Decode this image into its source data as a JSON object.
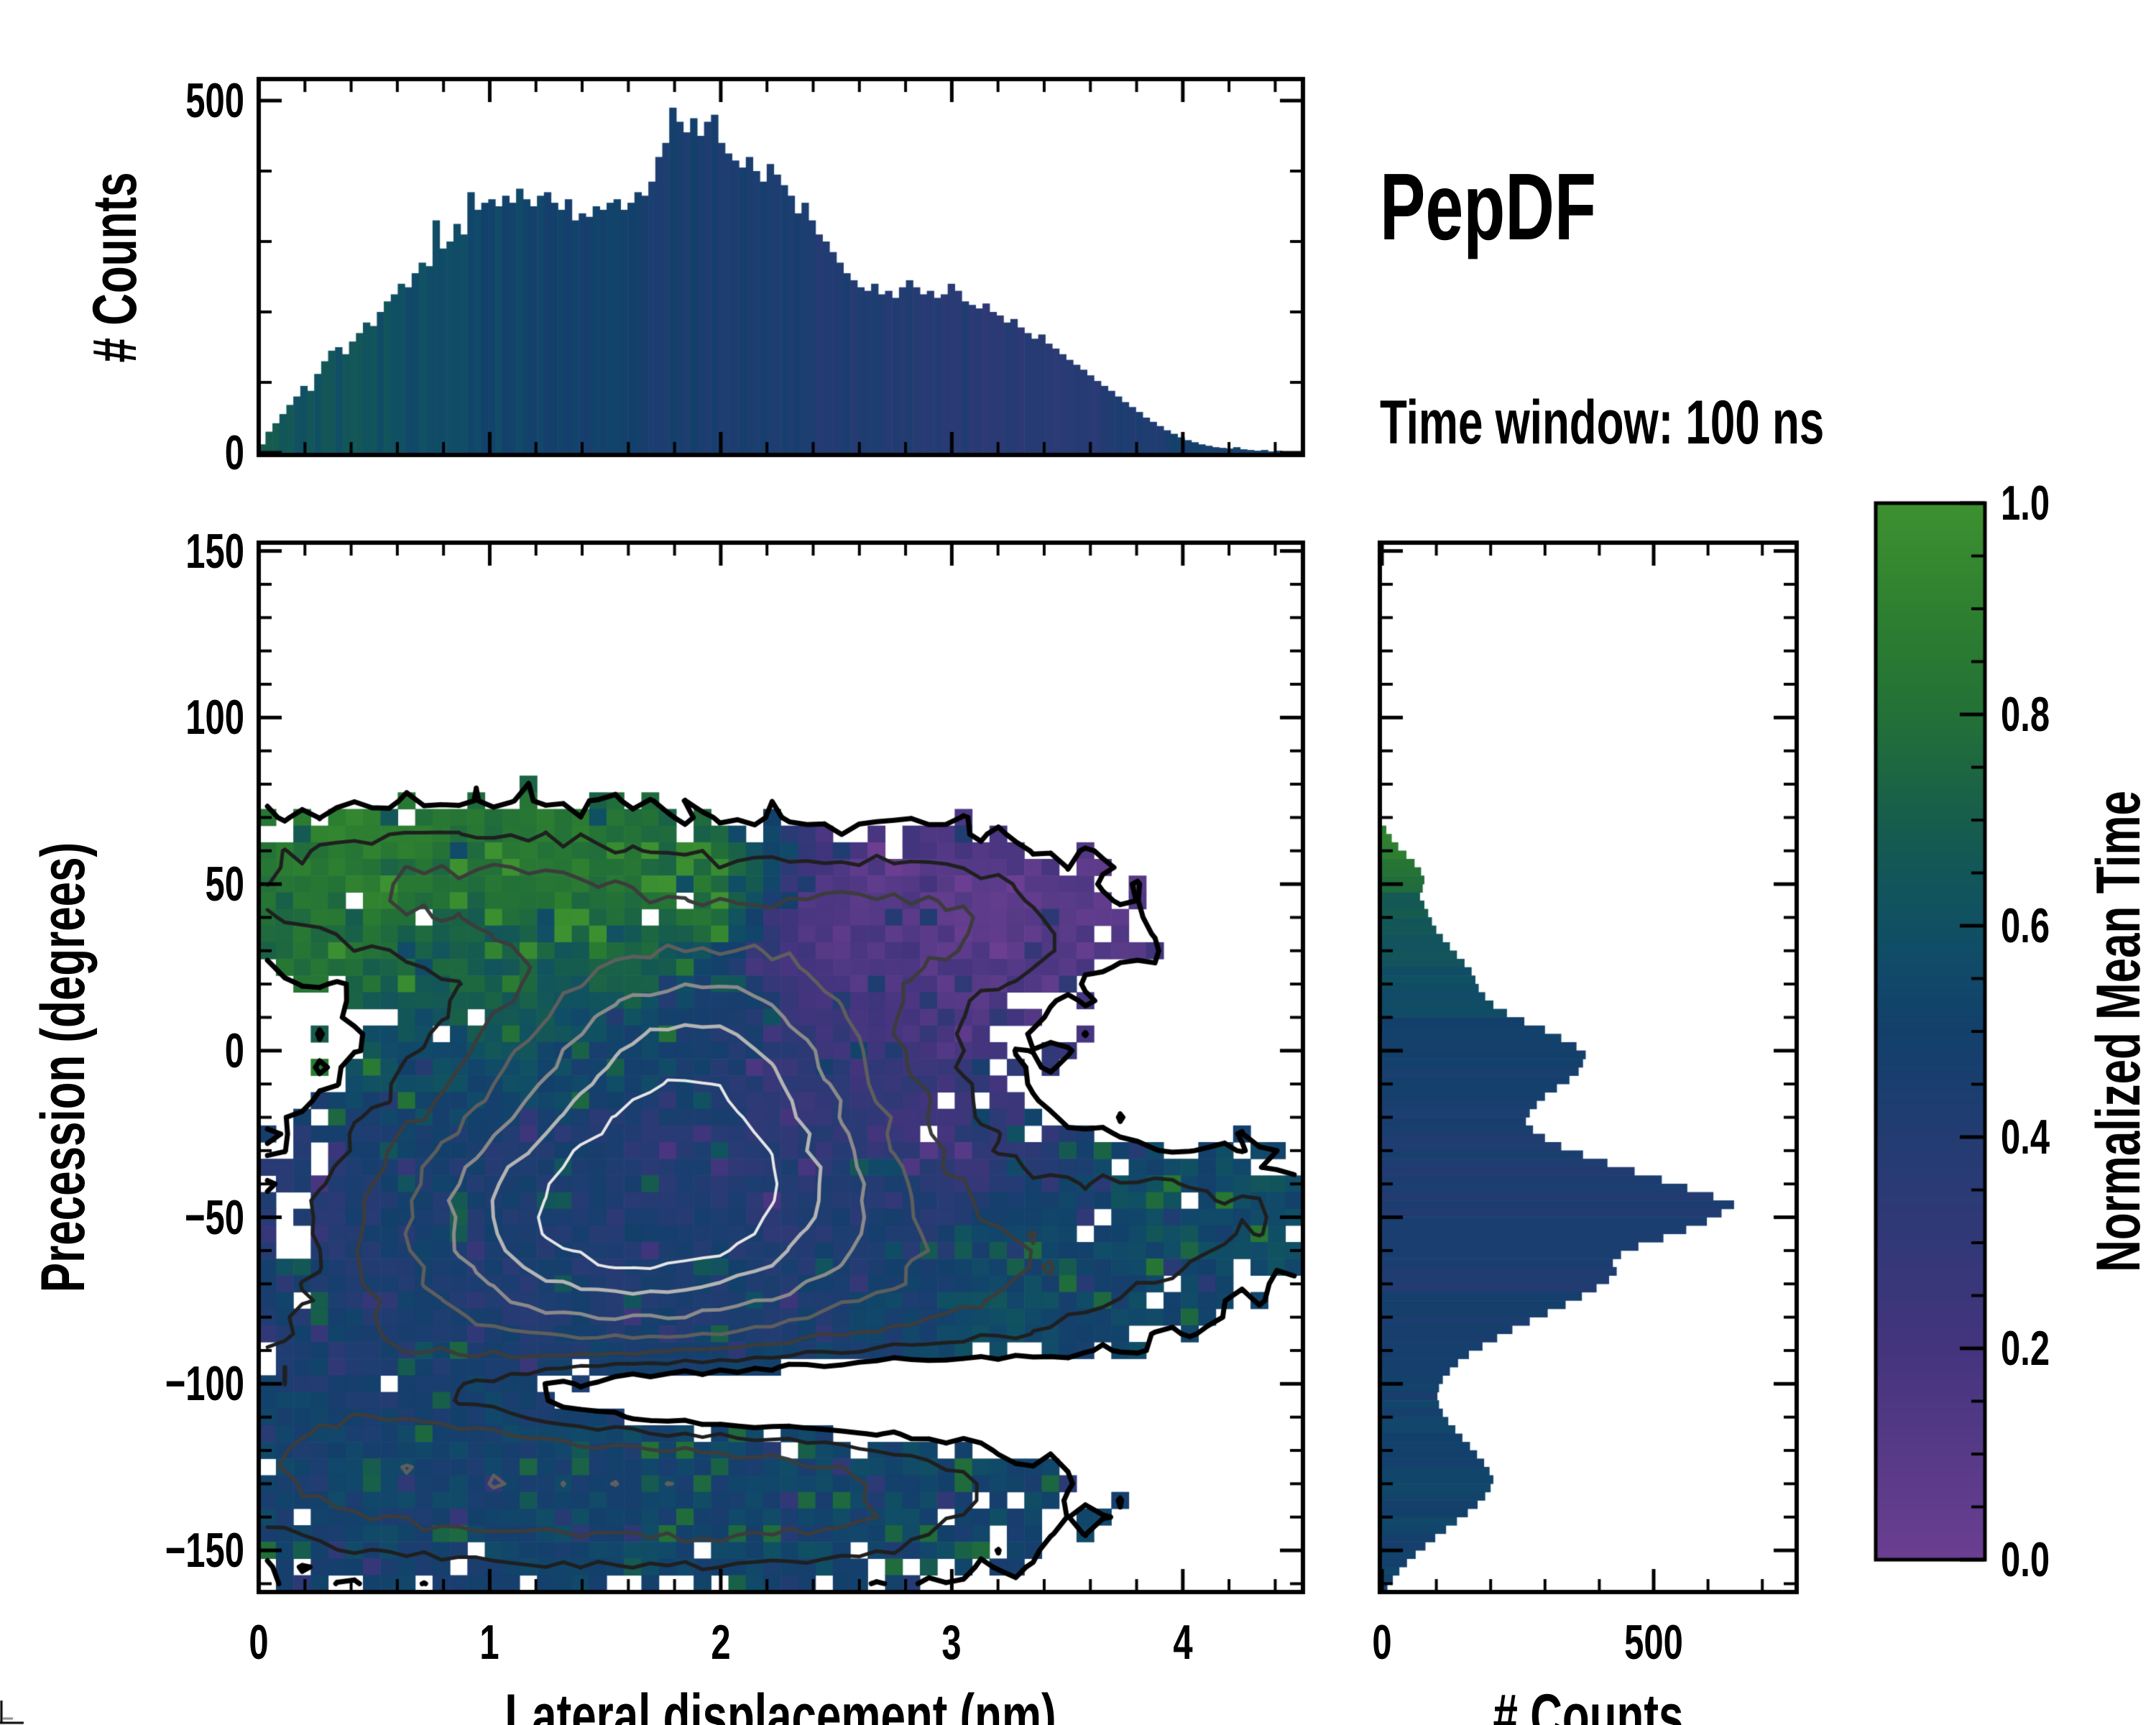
{
  "title": {
    "text": "PepDF",
    "subtitle": "Time window: 100 ns"
  },
  "panels": {
    "top_hist": {
      "ylabel": "# Counts",
      "ytick_labels": [
        "0",
        "500"
      ],
      "ytick_values": [
        0,
        500
      ],
      "y_minor_step": 100,
      "x_minor_step": 0.2
    },
    "main": {
      "xlabel": "Lateral displacement (nm)",
      "ylabel": "Precession (degrees)",
      "xtick_labels": [
        "0",
        "1",
        "2",
        "3",
        "4"
      ],
      "xtick_values": [
        0,
        1,
        2,
        3,
        4
      ],
      "x_minor_step": 0.2,
      "ytick_labels": [
        "150",
        "100",
        "50",
        "0",
        "−50",
        "−100",
        "−150"
      ],
      "ytick_values": [
        150,
        100,
        50,
        0,
        -50,
        -100,
        -150
      ],
      "y_minor_step": 10
    },
    "right_hist": {
      "xlabel": "# Counts",
      "xtick_labels": [
        "0",
        "500"
      ],
      "xtick_values": [
        0,
        500
      ],
      "x_minor_step": 100
    },
    "colorbar": {
      "label": "Normalized Mean Time",
      "tick_labels": [
        "1.0",
        "0.8",
        "0.6",
        "0.4",
        "0.2",
        "0.0"
      ],
      "tick_values": [
        1.0,
        0.8,
        0.6,
        0.4,
        0.2,
        0.0
      ],
      "minor_step": 0.05
    }
  },
  "chart_data": [
    {
      "id": "top_histogram",
      "type": "bar",
      "xlabel": "Lateral displacement (nm)",
      "ylabel": "# Counts",
      "xlim": [
        0,
        4.52
      ],
      "ylim": [
        0,
        530
      ],
      "x_start": 0,
      "bin_width": 0.030133,
      "values": [
        12,
        30,
        42,
        55,
        68,
        80,
        95,
        88,
        112,
        130,
        145,
        150,
        140,
        158,
        170,
        185,
        180,
        200,
        215,
        225,
        240,
        235,
        255,
        270,
        265,
        330,
        290,
        300,
        325,
        310,
        370,
        345,
        355,
        360,
        350,
        365,
        355,
        375,
        360,
        350,
        365,
        370,
        355,
        345,
        360,
        330,
        340,
        335,
        350,
        345,
        355,
        360,
        345,
        355,
        370,
        365,
        385,
        420,
        440,
        490,
        470,
        455,
        475,
        450,
        470,
        480,
        440,
        425,
        415,
        405,
        420,
        400,
        385,
        410,
        395,
        380,
        365,
        340,
        355,
        330,
        310,
        300,
        285,
        270,
        255,
        245,
        235,
        230,
        240,
        225,
        230,
        220,
        235,
        245,
        235,
        225,
        230,
        220,
        225,
        240,
        230,
        215,
        210,
        205,
        212,
        200,
        195,
        185,
        190,
        178,
        170,
        162,
        168,
        155,
        148,
        140,
        132,
        125,
        118,
        110,
        102,
        95,
        88,
        80,
        72,
        65,
        58,
        50,
        44,
        38,
        32,
        27,
        22,
        18,
        15,
        12,
        10,
        8,
        7,
        6,
        8,
        5,
        4,
        3,
        4,
        2,
        3,
        2,
        1,
        1
      ],
      "color_by": "normalized_mean_time",
      "mean_time_anchors": [
        [
          0,
          0.66
        ],
        [
          0.3,
          0.63
        ],
        [
          0.6,
          0.6
        ],
        [
          1.0,
          0.54
        ],
        [
          1.5,
          0.48
        ],
        [
          2.0,
          0.45
        ],
        [
          2.4,
          0.42
        ],
        [
          2.8,
          0.4
        ],
        [
          3.2,
          0.36
        ],
        [
          3.5,
          0.37
        ],
        [
          3.8,
          0.42
        ],
        [
          4.1,
          0.48
        ],
        [
          4.52,
          0.52
        ]
      ],
      "color_noise": 0.04
    },
    {
      "id": "joint_map",
      "type": "heatmap",
      "xlabel": "Lateral displacement (nm)",
      "ylabel": "Precession (degrees)",
      "colorlabel": "Normalized Mean Time",
      "xlim": [
        0,
        4.52
      ],
      "ylim": [
        -162.5,
        152.5
      ],
      "nx": 60,
      "ny": 63,
      "seed": 20240511,
      "density_gaussians": [
        [
          1.0,
          2.0,
          -42,
          0.6,
          30
        ],
        [
          0.7,
          1.25,
          -52,
          0.55,
          26
        ],
        [
          0.62,
          1.85,
          6,
          0.55,
          22
        ],
        [
          0.32,
          0.85,
          48,
          0.75,
          14
        ],
        [
          0.3,
          2.85,
          38,
          0.5,
          15
        ],
        [
          0.35,
          1.05,
          -130,
          0.8,
          16
        ],
        [
          0.3,
          2.3,
          -135,
          0.65,
          14
        ],
        [
          0.22,
          3.15,
          -70,
          0.55,
          16
        ],
        [
          0.2,
          3.95,
          -50,
          0.45,
          13
        ],
        [
          0.25,
          0.45,
          -105,
          0.5,
          22
        ],
        [
          -0.34,
          1.9,
          -103,
          1.0,
          9
        ]
      ],
      "density_noise": 0.03,
      "occupancy_threshold": 0.05,
      "dropout": {
        "amp": 0.45,
        "k": 14
      },
      "value_anchors": [
        [
          0.5,
          58,
          0.88
        ],
        [
          1.3,
          55,
          0.86
        ],
        [
          1.9,
          50,
          0.82
        ],
        [
          0.3,
          25,
          0.78
        ],
        [
          1.0,
          18,
          0.7
        ],
        [
          1.6,
          25,
          0.72
        ],
        [
          2.6,
          45,
          0.1
        ],
        [
          3.15,
          38,
          0.08
        ],
        [
          2.45,
          22,
          0.14
        ],
        [
          2.95,
          12,
          0.12
        ],
        [
          3.5,
          35,
          0.1
        ],
        [
          2.1,
          8,
          0.45
        ],
        [
          1.6,
          -2,
          0.52
        ],
        [
          0.8,
          -5,
          0.55
        ],
        [
          2.35,
          -8,
          0.3
        ],
        [
          2.8,
          -18,
          0.25
        ],
        [
          0.25,
          -40,
          0.4
        ],
        [
          1.0,
          -35,
          0.44
        ],
        [
          1.7,
          -30,
          0.4
        ],
        [
          2.2,
          -42,
          0.38
        ],
        [
          2.7,
          -50,
          0.42
        ],
        [
          3.1,
          -30,
          0.3
        ],
        [
          3.3,
          -55,
          0.52
        ],
        [
          3.9,
          -50,
          0.58
        ],
        [
          4.35,
          -48,
          0.58
        ],
        [
          3.2,
          -80,
          0.58
        ],
        [
          1.2,
          -70,
          0.42
        ],
        [
          2.0,
          -75,
          0.45
        ],
        [
          2.6,
          -85,
          0.5
        ],
        [
          0.6,
          -90,
          0.46
        ],
        [
          1.0,
          -115,
          0.5
        ],
        [
          1.8,
          -125,
          0.52
        ],
        [
          2.5,
          -135,
          0.52
        ],
        [
          0.5,
          -135,
          0.5
        ],
        [
          1.5,
          -150,
          0.52
        ],
        [
          2.3,
          -155,
          0.53
        ],
        [
          3.0,
          -115,
          0.54
        ]
      ],
      "value_noise": 0.07,
      "speck_up": {
        "p": 0.07,
        "dv": 0.22
      },
      "speck_down": {
        "p": 0.05,
        "dv": -0.16
      },
      "contours": {
        "levels": [
          0.05,
          0.16,
          0.3,
          0.48,
          0.68,
          0.9,
          1.12
        ],
        "colors": [
          "#000000",
          "#1f1f1f",
          "#3c3c3c",
          "#5e5e5e",
          "#8a8a8a",
          "#b4b4b4",
          "#e6e6e6"
        ],
        "widths": [
          7,
          5,
          5,
          5,
          5,
          5,
          4
        ]
      }
    },
    {
      "id": "right_histogram",
      "type": "bar-horizontal",
      "xlabel": "# Counts",
      "ylabel": "Precession (degrees)",
      "xlim": [
        0,
        767
      ],
      "ylim": [
        -162.5,
        152.5
      ],
      "y_start": 152.5,
      "bin_height": 2.5,
      "values": [
        0,
        0,
        0,
        0,
        0,
        0,
        0,
        0,
        0,
        0,
        0,
        0,
        0,
        0,
        0,
        0,
        0,
        0,
        0,
        0,
        0,
        0,
        0,
        0,
        0,
        0,
        0,
        0,
        0,
        0,
        0,
        0,
        0,
        0,
        8,
        18,
        30,
        45,
        60,
        72,
        78,
        75,
        70,
        78,
        85,
        92,
        100,
        112,
        125,
        138,
        152,
        165,
        172,
        178,
        190,
        205,
        230,
        262,
        300,
        330,
        358,
        375,
        370,
        362,
        345,
        322,
        300,
        285,
        272,
        265,
        278,
        300,
        330,
        370,
        415,
        465,
        515,
        562,
        610,
        648,
        625,
        598,
        560,
        518,
        472,
        440,
        425,
        432,
        418,
        395,
        368,
        338,
        305,
        272,
        240,
        212,
        185,
        160,
        140,
        125,
        112,
        105,
        102,
        105,
        112,
        122,
        135,
        148,
        162,
        175,
        188,
        198,
        205,
        200,
        190,
        176,
        158,
        138,
        118,
        98,
        80,
        62,
        46,
        32,
        20,
        10
      ],
      "color_by": "normalized_mean_time",
      "mean_time_anchors": [
        [
          66,
          0.88
        ],
        [
          55,
          0.86
        ],
        [
          46,
          0.7
        ],
        [
          36,
          0.62
        ],
        [
          26,
          0.6
        ],
        [
          16,
          0.57
        ],
        [
          6,
          0.52
        ],
        [
          -4,
          0.47
        ],
        [
          -18,
          0.44
        ],
        [
          -40,
          0.42
        ],
        [
          -58,
          0.43
        ],
        [
          -76,
          0.45
        ],
        [
          -95,
          0.48
        ],
        [
          -115,
          0.51
        ],
        [
          -135,
          0.52
        ],
        [
          -161,
          0.5
        ]
      ],
      "color_noise": 0.04
    },
    {
      "id": "colorbar",
      "type": "colorbar",
      "label": "Normalized Mean Time",
      "range": [
        0,
        1
      ],
      "stops": [
        [
          0.0,
          "#6b3e92"
        ],
        [
          0.1,
          "#573a87"
        ],
        [
          0.2,
          "#44347e"
        ],
        [
          0.3,
          "#323877"
        ],
        [
          0.4,
          "#233c72"
        ],
        [
          0.45,
          "#1a3e6f"
        ],
        [
          0.5,
          "#13406b"
        ],
        [
          0.55,
          "#11486a"
        ],
        [
          0.6,
          "#105063"
        ],
        [
          0.65,
          "#135659"
        ],
        [
          0.7,
          "#175d4c"
        ],
        [
          0.8,
          "#237137"
        ],
        [
          0.9,
          "#2e8030"
        ],
        [
          1.0,
          "#3e9130"
        ]
      ]
    }
  ]
}
